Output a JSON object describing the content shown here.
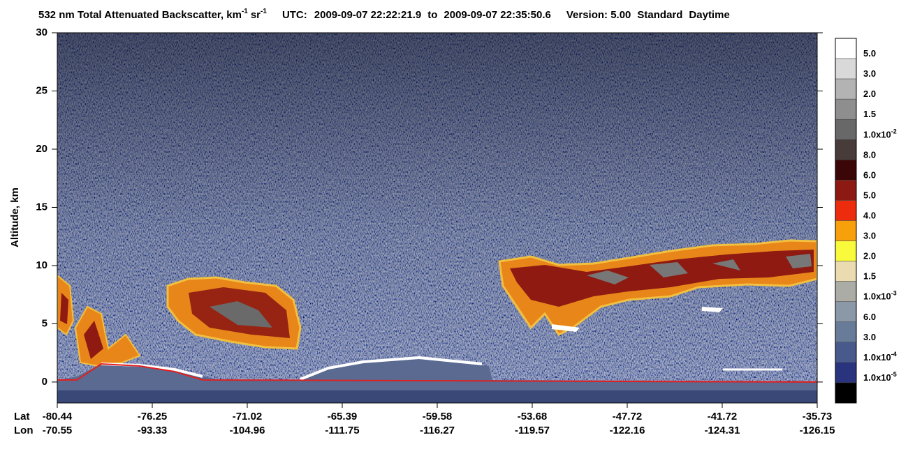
{
  "chart_data": {
    "type": "curtain",
    "title": {
      "measure": "532 nm Total Attenuated Backscatter, km",
      "unit_exp": "-1",
      "unit2": "sr",
      "unit2_exp": "-1",
      "utc_label": "UTC:",
      "start": "2009-09-07 22:22:21.9",
      "to": "to",
      "end": "2009-09-07 22:35:50.6",
      "version": "Version: 5.00",
      "product": "Standard",
      "time": "Daytime"
    },
    "ylabel": "Altitude, km",
    "ylim": [
      -1.8,
      30
    ],
    "yticks": [
      0,
      5,
      10,
      15,
      20,
      25,
      30
    ],
    "x_rows": [
      {
        "label": "Lat",
        "ticks": [
          -80.44,
          -76.25,
          -71.02,
          -65.39,
          -59.58,
          -53.68,
          -47.72,
          -41.72,
          -35.73
        ]
      },
      {
        "label": "Lon",
        "ticks": [
          -70.55,
          -93.33,
          -104.96,
          -111.75,
          -116.27,
          -119.57,
          -122.16,
          -124.31,
          -126.15
        ]
      }
    ],
    "colorbar": {
      "colors": [
        "#ffffff",
        "#d9d9d9",
        "#b3b3b3",
        "#8e8e8e",
        "#686868",
        "#473c3a",
        "#3a0606",
        "#8c1a12",
        "#ec2c0c",
        "#f8a00c",
        "#fafa3c",
        "#eadcb0",
        "#acaca6",
        "#8a98a8",
        "#687c9a",
        "#485a8c",
        "#2a337e",
        "#000000"
      ],
      "labels": [
        {
          "label": "5.0"
        },
        {
          "label": "3.0"
        },
        {
          "label": "2.0"
        },
        {
          "label": "1.5"
        },
        {
          "label": "1.0x10",
          "exp": "-2"
        },
        {
          "label": "8.0"
        },
        {
          "label": "6.0"
        },
        {
          "label": "5.0"
        },
        {
          "label": "4.0"
        },
        {
          "label": "3.0"
        },
        {
          "label": "2.0"
        },
        {
          "label": "1.5"
        },
        {
          "label": "1.0x10",
          "exp": "-3"
        },
        {
          "label": "6.0"
        },
        {
          "label": "3.0"
        },
        {
          "label": "1.0x10",
          "exp": "-4"
        },
        {
          "label": "1.0x10",
          "exp": "-5"
        }
      ]
    }
  }
}
